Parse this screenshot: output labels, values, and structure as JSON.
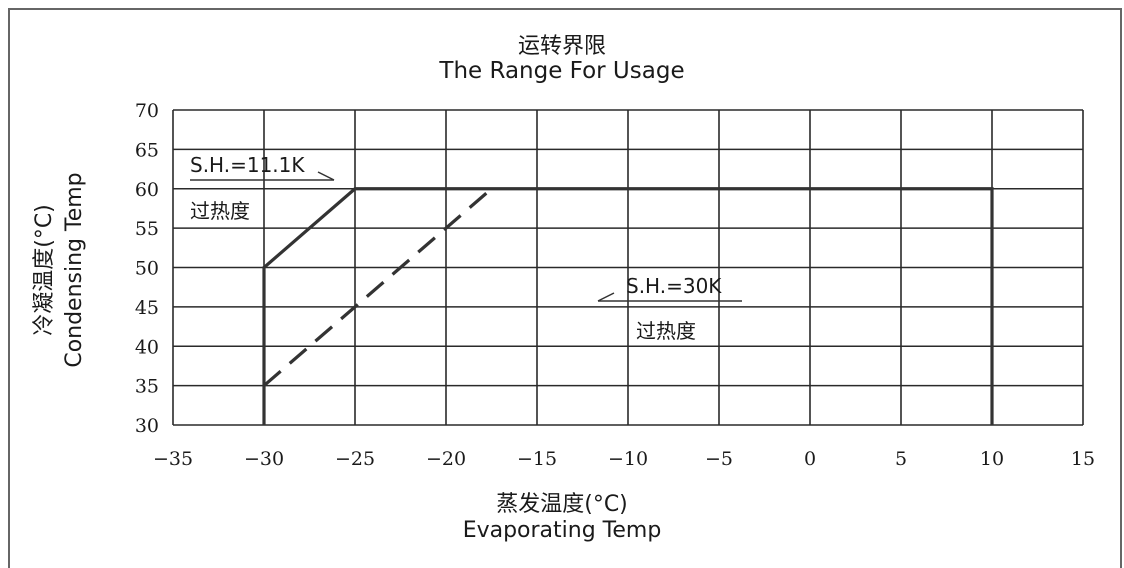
{
  "chart_data": {
    "type": "line",
    "title_cn": "运转界限",
    "title_en": "The Range For Usage",
    "xlabel_cn": "蒸发温度(°C)",
    "xlabel_en": "Evaporating Temp",
    "ylabel_cn": "冷凝温度(°C)",
    "ylabel_en": "Condensing Temp",
    "xlim": [
      -35,
      15
    ],
    "ylim": [
      30,
      70
    ],
    "xticks": [
      -35,
      -30,
      -25,
      -20,
      -15,
      -10,
      -5,
      0,
      5,
      10,
      15
    ],
    "yticks": [
      30,
      35,
      40,
      45,
      50,
      55,
      60,
      65,
      70
    ],
    "xtick_labels": [
      "−35",
      "−30",
      "−25",
      "−20",
      "−15",
      "−10",
      "−5",
      "0",
      "5",
      "10",
      "15"
    ],
    "ytick_labels": [
      "30",
      "35",
      "40",
      "45",
      "50",
      "55",
      "60",
      "65",
      "70"
    ],
    "grid": true,
    "series": [
      {
        "name": "S.H.=11.1K",
        "style": "solid",
        "x": [
          -30,
          -30,
          -25,
          10,
          10
        ],
        "y": [
          30,
          50,
          60,
          60,
          30
        ]
      },
      {
        "name": "S.H.=30K",
        "style": "dashed",
        "x": [
          -30,
          -17.5
        ],
        "y": [
          35,
          60
        ]
      }
    ],
    "annotations": [
      {
        "label": "S.H.=11.1K",
        "sub": "过热度",
        "arrow": "right"
      },
      {
        "label": "S.H.=30K",
        "sub": "过热度",
        "arrow": "left"
      }
    ]
  }
}
